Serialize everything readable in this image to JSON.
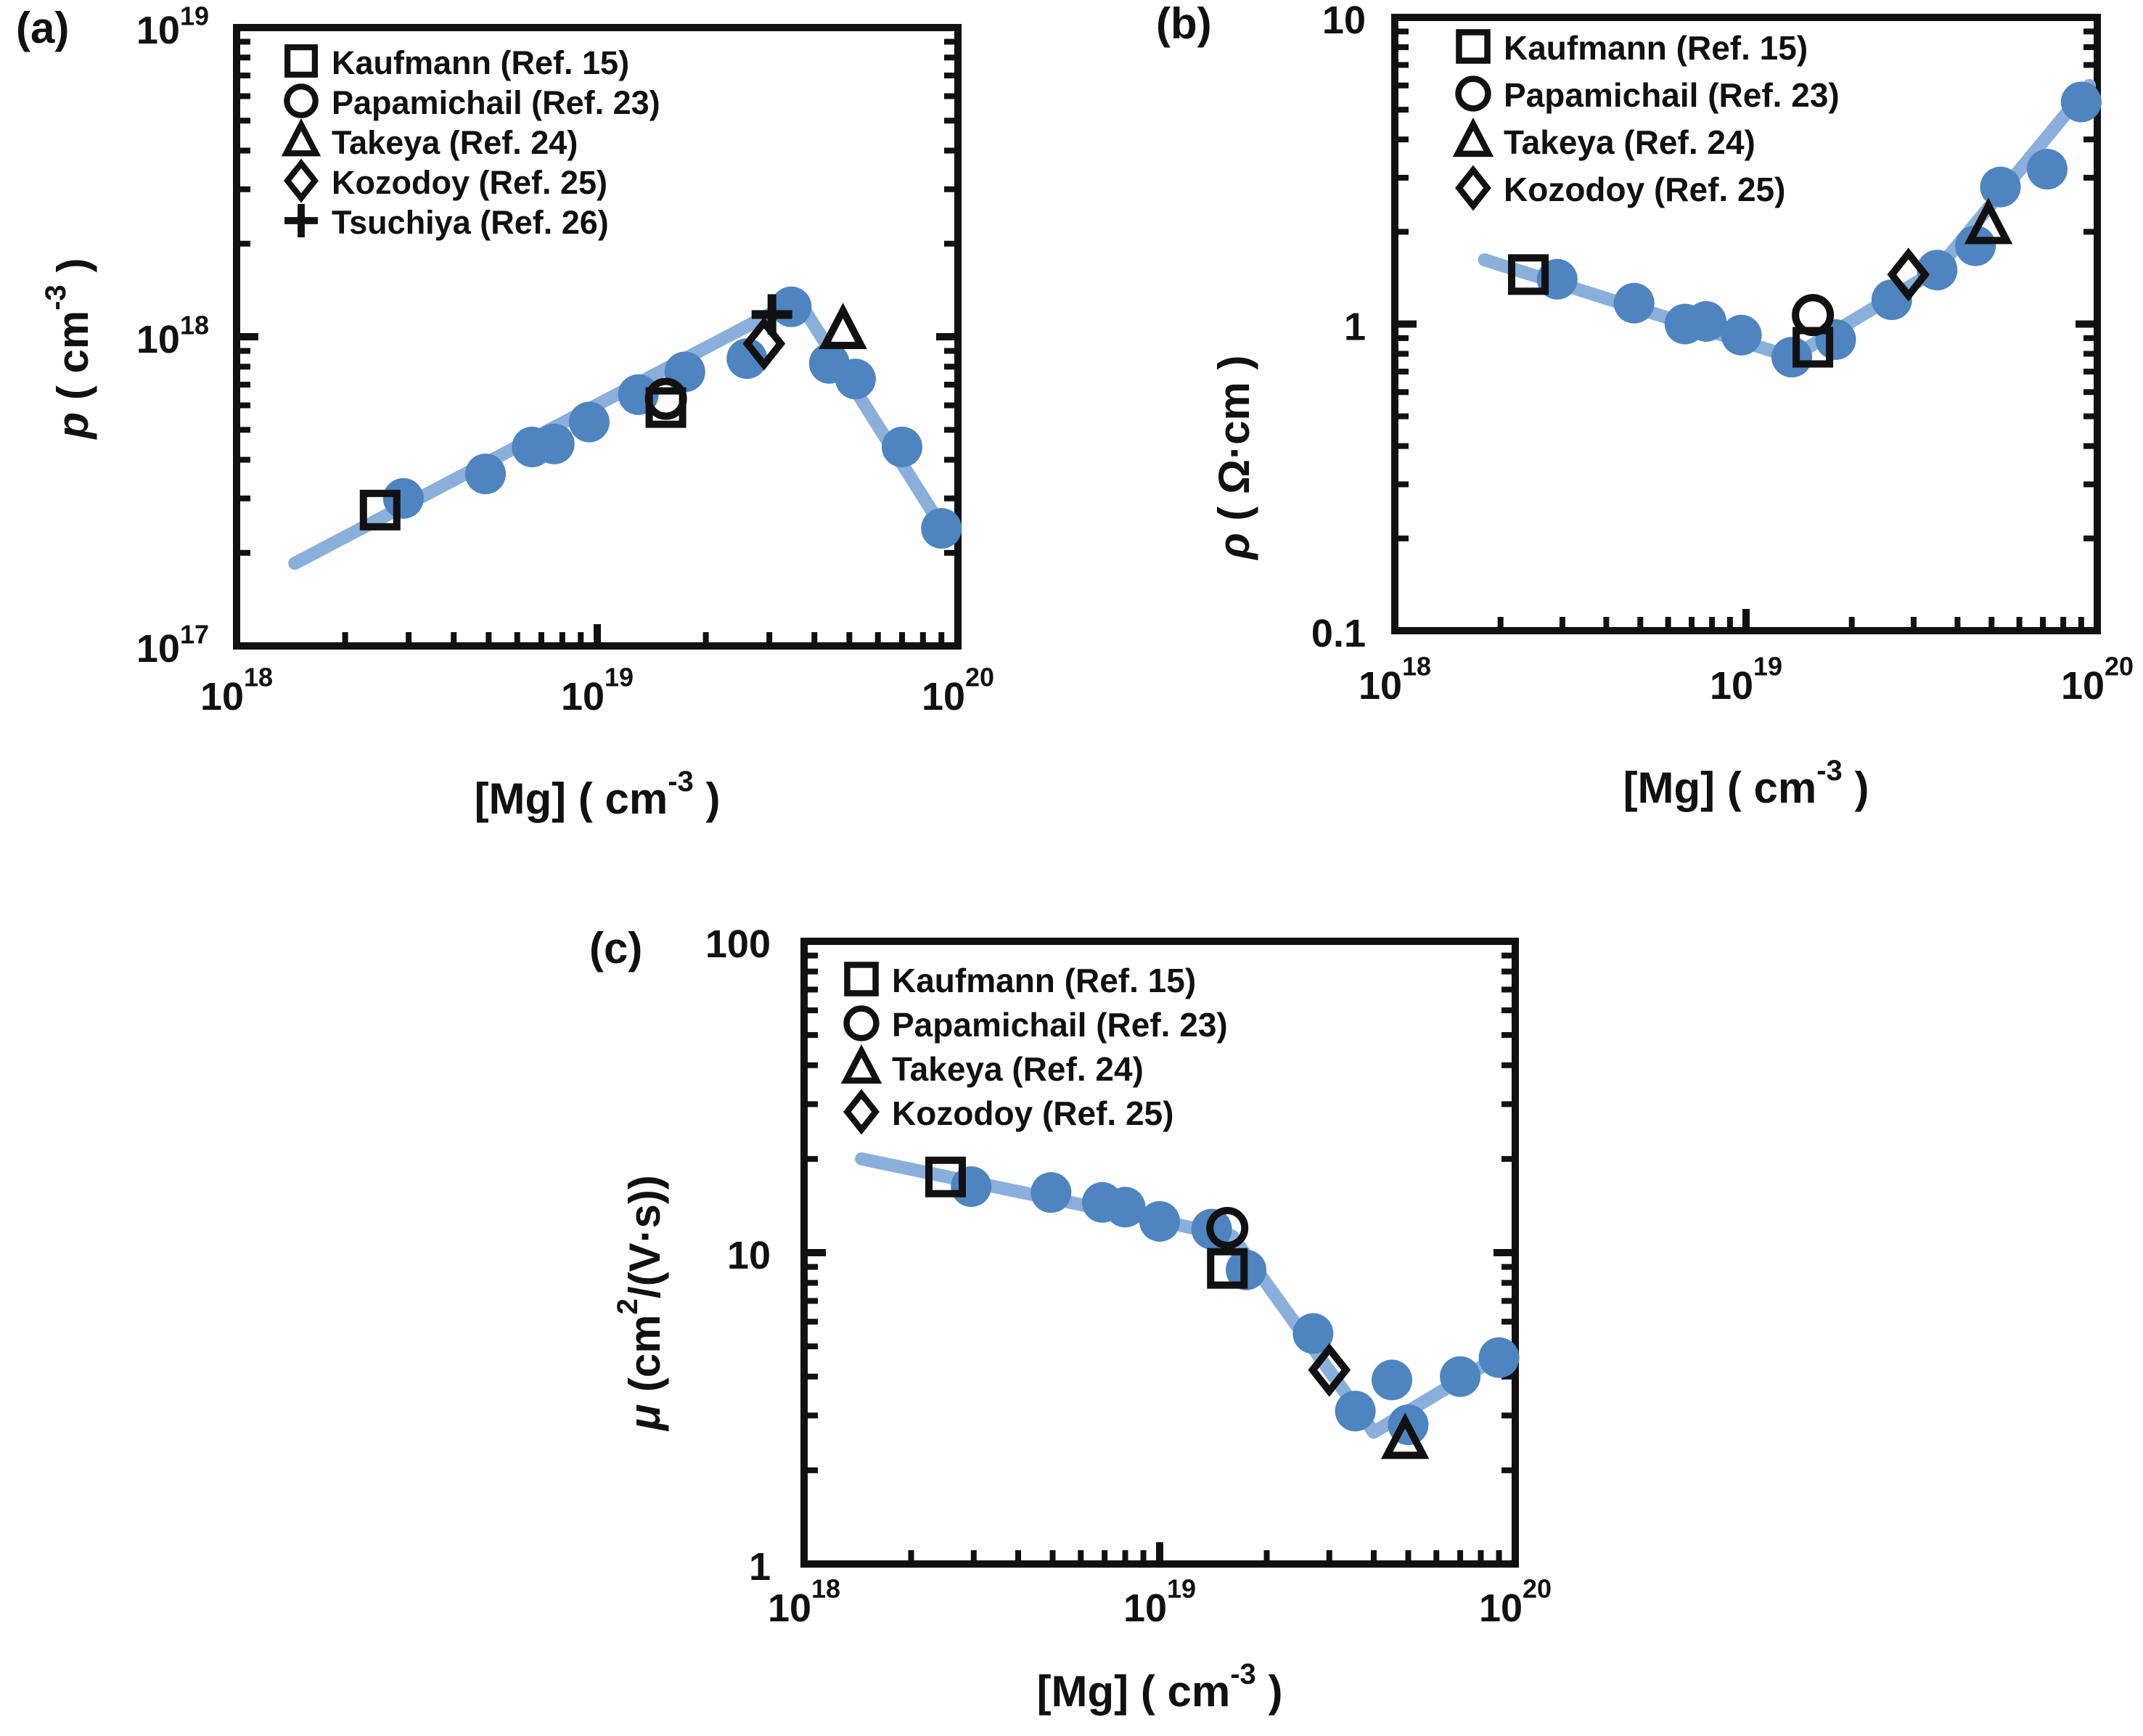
{
  "page": {
    "background": "#ffffff"
  },
  "colors": {
    "data_blue": "#4e84bf",
    "trend_blue": "#84abd8",
    "ink": "#111111"
  },
  "figure": {
    "panels": [
      {
        "id": "a",
        "panel_label": "(a)",
        "x_axis": {
          "title_segments": [
            {
              "t": "[Mg] ( cm"
            },
            {
              "t": "-3",
              "sup": true
            },
            {
              "t": " )"
            }
          ],
          "tick_values": [
            1e+18,
            1e+19,
            1e+20
          ],
          "tick_labels": [
            [
              {
                "t": "10"
              },
              {
                "t": "18",
                "sup": true
              }
            ],
            [
              {
                "t": "10"
              },
              {
                "t": "19",
                "sup": true
              }
            ],
            [
              {
                "t": "10"
              },
              {
                "t": "20",
                "sup": true
              }
            ]
          ]
        },
        "y_axis": {
          "title_segments": [
            {
              "t": "p",
              "italic": true
            },
            {
              "t": " ( cm"
            },
            {
              "t": "-3",
              "sup": true
            },
            {
              "t": " )"
            }
          ],
          "tick_values": [
            1e+19,
            1e+18,
            1e+17
          ],
          "tick_labels": [
            [
              {
                "t": "10"
              },
              {
                "t": "19",
                "sup": true
              }
            ],
            [
              {
                "t": "10"
              },
              {
                "t": "18",
                "sup": true
              }
            ],
            [
              {
                "t": "10"
              },
              {
                "t": "17",
                "sup": true
              }
            ]
          ]
        },
        "legend": [
          {
            "marker": "open-square",
            "label": "Kaufmann (Ref. 15)"
          },
          {
            "marker": "open-circle",
            "label": "Papamichail (Ref. 23)"
          },
          {
            "marker": "open-triangle",
            "label": "Takeya (Ref. 24)"
          },
          {
            "marker": "open-diamond",
            "label": "Kozodoy (Ref. 25)"
          },
          {
            "marker": "plus",
            "label": "Tsuchiya (Ref. 26)"
          }
        ]
      },
      {
        "id": "b",
        "panel_label": "(b)",
        "x_axis": {
          "title_segments": [
            {
              "t": "[Mg] ( cm"
            },
            {
              "t": "-3",
              "sup": true
            },
            {
              "t": " )"
            }
          ],
          "tick_values": [
            1e+18,
            1e+19,
            1e+20
          ],
          "tick_labels": [
            [
              {
                "t": "10"
              },
              {
                "t": "18",
                "sup": true
              }
            ],
            [
              {
                "t": "10"
              },
              {
                "t": "19",
                "sup": true
              }
            ],
            [
              {
                "t": "10"
              },
              {
                "t": "20",
                "sup": true
              }
            ]
          ]
        },
        "y_axis": {
          "title_segments": [
            {
              "t": "ρ",
              "italic": true
            },
            {
              "t": " ( Ω·cm )"
            }
          ],
          "tick_values": [
            10,
            1,
            0.1
          ],
          "tick_labels": [
            [
              {
                "t": "10"
              }
            ],
            [
              {
                "t": "1"
              }
            ],
            [
              {
                "t": "0.1"
              }
            ]
          ]
        },
        "legend": [
          {
            "marker": "open-square",
            "label": "Kaufmann (Ref. 15)"
          },
          {
            "marker": "open-circle",
            "label": "Papamichail (Ref. 23)"
          },
          {
            "marker": "open-triangle",
            "label": "Takeya (Ref. 24)"
          },
          {
            "marker": "open-diamond",
            "label": "Kozodoy (Ref. 25)"
          }
        ]
      },
      {
        "id": "c",
        "panel_label": "(c)",
        "x_axis": {
          "title_segments": [
            {
              "t": "[Mg] ( cm"
            },
            {
              "t": "-3",
              "sup": true
            },
            {
              "t": " )"
            }
          ],
          "tick_values": [
            1e+18,
            1e+19,
            1e+20
          ],
          "tick_labels": [
            [
              {
                "t": "10"
              },
              {
                "t": "18",
                "sup": true
              }
            ],
            [
              {
                "t": "10"
              },
              {
                "t": "19",
                "sup": true
              }
            ],
            [
              {
                "t": "10"
              },
              {
                "t": "20",
                "sup": true
              }
            ]
          ]
        },
        "y_axis": {
          "title_segments": [
            {
              "t": "μ",
              "italic": true
            },
            {
              "t": " (cm"
            },
            {
              "t": "2",
              "sup": true
            },
            {
              "t": "/(V·s))"
            }
          ],
          "tick_values": [
            100,
            10,
            1
          ],
          "tick_labels": [
            [
              {
                "t": "100"
              }
            ],
            [
              {
                "t": "10"
              }
            ],
            [
              {
                "t": "1"
              }
            ]
          ]
        },
        "legend": [
          {
            "marker": "open-square",
            "label": "Kaufmann (Ref. 15)"
          },
          {
            "marker": "open-circle",
            "label": "Papamichail (Ref. 23)"
          },
          {
            "marker": "open-triangle",
            "label": "Takeya (Ref. 24)"
          },
          {
            "marker": "open-diamond",
            "label": "Kozodoy (Ref. 25)"
          }
        ]
      }
    ]
  },
  "chart_data": [
    {
      "panel": "a",
      "type": "scatter",
      "xscale": "log",
      "yscale": "log",
      "xlabel": "[Mg] ( cm^-3 )",
      "ylabel": "p ( cm^-3 )",
      "xlim": [
        1e+18,
        1e+20
      ],
      "ylim": [
        1e+17,
        1e+19
      ],
      "grid": false,
      "legend_position": "top-left-inside",
      "series": [
        {
          "name": "trend-line",
          "role": "line",
          "color": "#84abd8",
          "points": [
            [
              1.45e+18,
              1.85e+17
            ],
            [
              3.6e+19,
              1.32e+18
            ],
            [
              9.3e+19,
              2.3e+17
            ]
          ]
        },
        {
          "name": "hall-data-filled-circles",
          "role": "scatter",
          "marker": "filled-circle",
          "color": "#4e84bf",
          "points": [
            [
              2.9e+18,
              3e+17
            ],
            [
              4.9e+18,
              3.6e+17
            ],
            [
              6.6e+18,
              4.4e+17
            ],
            [
              7.6e+18,
              4.5e+17
            ],
            [
              9.5e+18,
              5.3e+17
            ],
            [
              1.3e+19,
              6.5e+17
            ],
            [
              1.75e+19,
              7.7e+17
            ],
            [
              2.6e+19,
              8.5e+17
            ],
            [
              3.45e+19,
              1.25e+18
            ],
            [
              4.4e+19,
              8.2e+17
            ],
            [
              5.2e+19,
              7.3e+17
            ],
            [
              7e+19,
              4.4e+17
            ],
            [
              9e+19,
              2.4e+17
            ]
          ]
        },
        {
          "name": "Kaufmann (Ref. 15)",
          "role": "scatter",
          "marker": "open-square",
          "points": [
            [
              2.5e+18,
              2.75e+17
            ],
            [
              1.55e+19,
              5.9e+17
            ]
          ]
        },
        {
          "name": "Papamichail (Ref. 23)",
          "role": "scatter",
          "marker": "open-circle",
          "points": [
            [
              1.55e+19,
              6.3e+17
            ]
          ]
        },
        {
          "name": "Takeya (Ref. 24)",
          "role": "scatter",
          "marker": "open-triangle",
          "points": [
            [
              4.8e+19,
              1.05e+18
            ]
          ]
        },
        {
          "name": "Kozodoy (Ref. 25)",
          "role": "scatter",
          "marker": "open-diamond",
          "points": [
            [
              2.9e+19,
              9.5e+17
            ]
          ]
        },
        {
          "name": "Tsuchiya (Ref. 26)",
          "role": "scatter",
          "marker": "plus",
          "points": [
            [
              3.05e+19,
              1.18e+18
            ]
          ]
        }
      ]
    },
    {
      "panel": "b",
      "type": "scatter",
      "xscale": "log",
      "yscale": "log",
      "xlabel": "[Mg] ( cm^-3 )",
      "ylabel": "rho ( Ohm·cm )",
      "xlim": [
        1e+18,
        1e+20
      ],
      "ylim": [
        0.1,
        10
      ],
      "grid": false,
      "legend_position": "top-left-inside",
      "series": [
        {
          "name": "trend-line",
          "role": "line",
          "color": "#84abd8",
          "points": [
            [
              1.8e+18,
              1.62
            ],
            [
              1.35e+19,
              0.78
            ],
            [
              3.5e+19,
              1.5
            ],
            [
              9.5e+19,
              6.0
            ]
          ]
        },
        {
          "name": "hall-data-filled-circles",
          "role": "scatter",
          "marker": "filled-circle",
          "color": "#4e84bf",
          "points": [
            [
              2.9e+18,
              1.4
            ],
            [
              4.8e+18,
              1.17
            ],
            [
              6.7e+18,
              1.0
            ],
            [
              7.7e+18,
              1.02
            ],
            [
              9.7e+18,
              0.92
            ],
            [
              1.35e+19,
              0.78
            ],
            [
              1.8e+19,
              0.89
            ],
            [
              2.6e+19,
              1.2
            ],
            [
              3.5e+19,
              1.5
            ],
            [
              4.5e+19,
              1.8
            ],
            [
              5.3e+19,
              2.8
            ],
            [
              7.2e+19,
              3.2
            ],
            [
              9e+19,
              5.3
            ]
          ]
        },
        {
          "name": "Kaufmann (Ref. 15)",
          "role": "scatter",
          "marker": "open-square",
          "points": [
            [
              2.4e+18,
              1.45
            ],
            [
              1.55e+19,
              0.84
            ]
          ]
        },
        {
          "name": "Papamichail (Ref. 23)",
          "role": "scatter",
          "marker": "open-circle",
          "points": [
            [
              1.55e+19,
              1.07
            ]
          ]
        },
        {
          "name": "Takeya (Ref. 24)",
          "role": "scatter",
          "marker": "open-triangle",
          "points": [
            [
              4.9e+19,
              2.1
            ]
          ]
        },
        {
          "name": "Kozodoy (Ref. 25)",
          "role": "scatter",
          "marker": "open-diamond",
          "points": [
            [
              2.9e+19,
              1.45
            ]
          ]
        }
      ]
    },
    {
      "panel": "c",
      "type": "scatter",
      "xscale": "log",
      "yscale": "log",
      "xlabel": "[Mg] ( cm^-3 )",
      "ylabel": "mu (cm^2/(V·s))",
      "xlim": [
        1e+18,
        1e+20
      ],
      "ylim": [
        1,
        100
      ],
      "grid": false,
      "legend_position": "top-left-inside",
      "series": [
        {
          "name": "trend-line",
          "role": "line",
          "color": "#84abd8",
          "points": [
            [
              1.45e+18,
              20
            ],
            [
              1.6e+19,
              11.3
            ],
            [
              4e+19,
              2.65
            ],
            [
              9.3e+19,
              4.75
            ]
          ]
        },
        {
          "name": "hall-data-filled-circles",
          "role": "scatter",
          "marker": "filled-circle",
          "color": "#4e84bf",
          "points": [
            [
              2.95e+18,
              16.3
            ],
            [
              4.95e+18,
              15.6
            ],
            [
              6.9e+18,
              14.5
            ],
            [
              8e+18,
              14.0
            ],
            [
              1e+19,
              12.6
            ],
            [
              1.4e+19,
              11.9
            ],
            [
              1.75e+19,
              8.8
            ],
            [
              2.7e+19,
              5.5
            ],
            [
              3.55e+19,
              3.1
            ],
            [
              4.5e+19,
              3.9
            ],
            [
              5e+19,
              2.8
            ],
            [
              7e+19,
              4.0
            ],
            [
              9e+19,
              4.6
            ]
          ]
        },
        {
          "name": "Kaufmann (Ref. 15)",
          "role": "scatter",
          "marker": "open-square",
          "points": [
            [
              2.5e+18,
              17.5
            ],
            [
              1.55e+19,
              8.9
            ]
          ]
        },
        {
          "name": "Papamichail (Ref. 23)",
          "role": "scatter",
          "marker": "open-circle",
          "points": [
            [
              1.55e+19,
              12.0
            ]
          ]
        },
        {
          "name": "Takeya (Ref. 24)",
          "role": "scatter",
          "marker": "open-triangle",
          "points": [
            [
              4.9e+19,
              2.5
            ]
          ]
        },
        {
          "name": "Kozodoy (Ref. 25)",
          "role": "scatter",
          "marker": "open-diamond",
          "points": [
            [
              3e+19,
              4.2
            ]
          ]
        }
      ]
    }
  ]
}
